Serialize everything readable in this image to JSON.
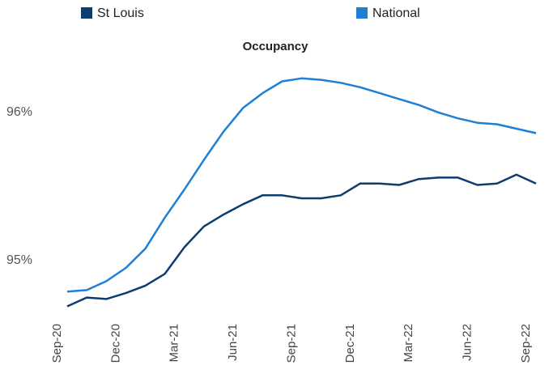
{
  "chart_data": {
    "type": "line",
    "title": "Occupancy",
    "categories": [
      "Sep-20",
      null,
      null,
      "Dec-20",
      null,
      null,
      "Mar-21",
      null,
      null,
      "Jun-21",
      null,
      null,
      "Sep-21",
      null,
      null,
      "Dec-21",
      null,
      null,
      "Mar-22",
      null,
      null,
      "Jun-22",
      null,
      null,
      "Sep-22"
    ],
    "series": [
      {
        "name": "St Louis",
        "color": "#0b3d6e",
        "values": [
          94.69,
          94.75,
          94.74,
          94.78,
          94.83,
          94.91,
          95.09,
          95.23,
          95.31,
          95.38,
          95.44,
          95.44,
          95.42,
          95.42,
          95.44,
          95.52,
          95.52,
          95.51,
          95.55,
          95.56,
          95.56,
          95.51,
          95.52,
          95.58,
          95.52
        ]
      },
      {
        "name": "National",
        "color": "#1f7fd4",
        "values": [
          94.79,
          94.8,
          94.86,
          94.95,
          95.08,
          95.29,
          95.48,
          95.68,
          95.87,
          96.03,
          96.13,
          96.21,
          96.23,
          96.22,
          96.2,
          96.17,
          96.13,
          96.09,
          96.05,
          96.0,
          95.96,
          95.93,
          95.92,
          95.89,
          95.86
        ]
      }
    ],
    "ylim": [
      94.6,
      96.3
    ],
    "yticks": [
      {
        "value": 95,
        "label": "95%"
      },
      {
        "value": 96,
        "label": "96%"
      }
    ],
    "grid": false,
    "legend": "top"
  }
}
